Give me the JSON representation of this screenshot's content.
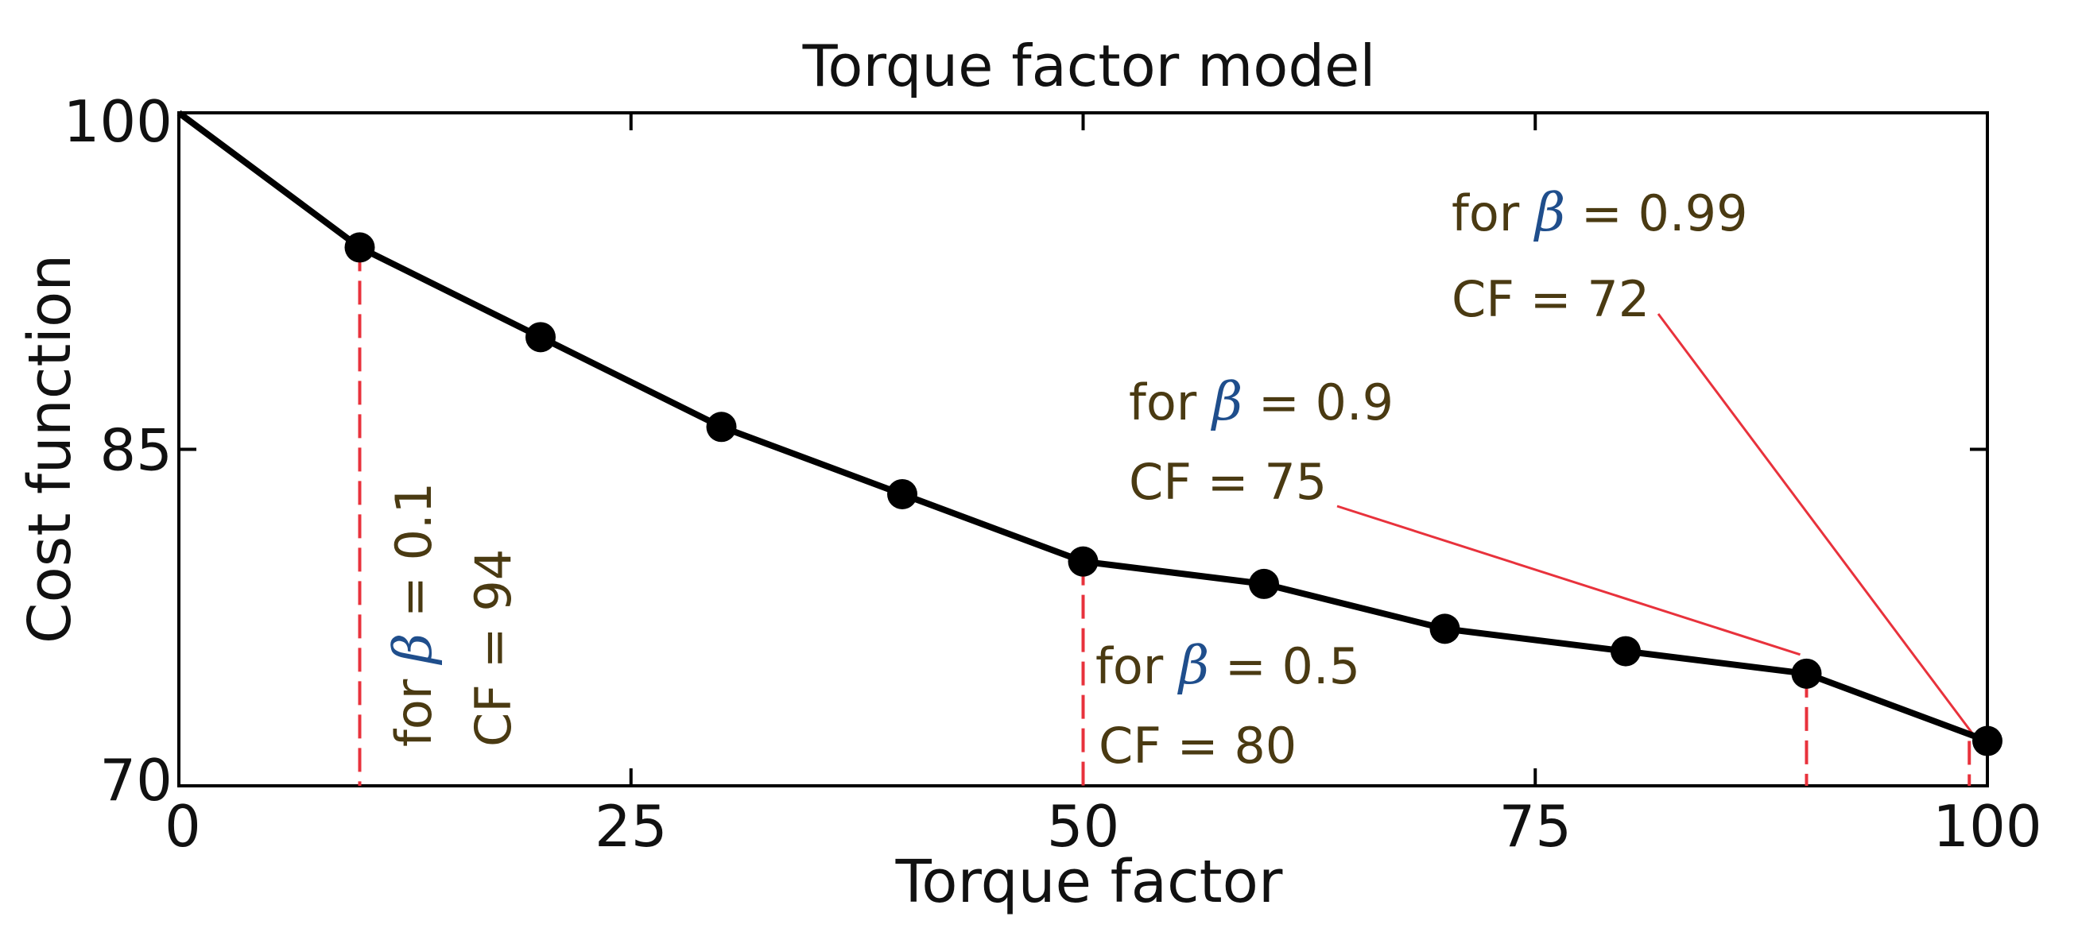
{
  "chart_data": {
    "type": "line",
    "title": "Torque factor model",
    "xlabel": "Torque factor",
    "ylabel": "Cost function",
    "xlim": [
      0,
      100
    ],
    "ylim": [
      70,
      100
    ],
    "xticks": [
      0,
      25,
      50,
      75,
      100
    ],
    "xtick_labels": [
      "0",
      "25",
      "50",
      "75",
      "100"
    ],
    "yticks": [
      70,
      85,
      100
    ],
    "ytick_labels": [
      "70",
      "85",
      "100"
    ],
    "grid": false,
    "series": [
      {
        "color": "#000000",
        "x": [
          0,
          10,
          20,
          30,
          40,
          50,
          60,
          70,
          80,
          90,
          100
        ],
        "y": [
          100,
          94,
          90,
          86,
          83,
          80,
          79,
          77,
          76,
          75,
          72
        ]
      }
    ],
    "annotations": [
      {
        "beta_line": "for β = 0.1",
        "cf_line": "CF = 94",
        "x": 10,
        "y": 94,
        "style": "vertical-dashed",
        "color": "#e8323c"
      },
      {
        "beta_line": "for β = 0.5",
        "cf_line": "CF = 80",
        "x": 50,
        "y": 80,
        "style": "vertical-dashed",
        "color": "#e8323c"
      },
      {
        "beta_line": "for β = 0.9",
        "cf_line": "CF = 75",
        "x": 90,
        "y": 75,
        "style": "dashed-and-leader",
        "color": "#e8323c"
      },
      {
        "beta_line": "for β = 0.99",
        "cf_line": "CF = 72",
        "x": 99,
        "y": 72,
        "style": "dashed-and-leader",
        "color": "#e8323c"
      }
    ]
  }
}
